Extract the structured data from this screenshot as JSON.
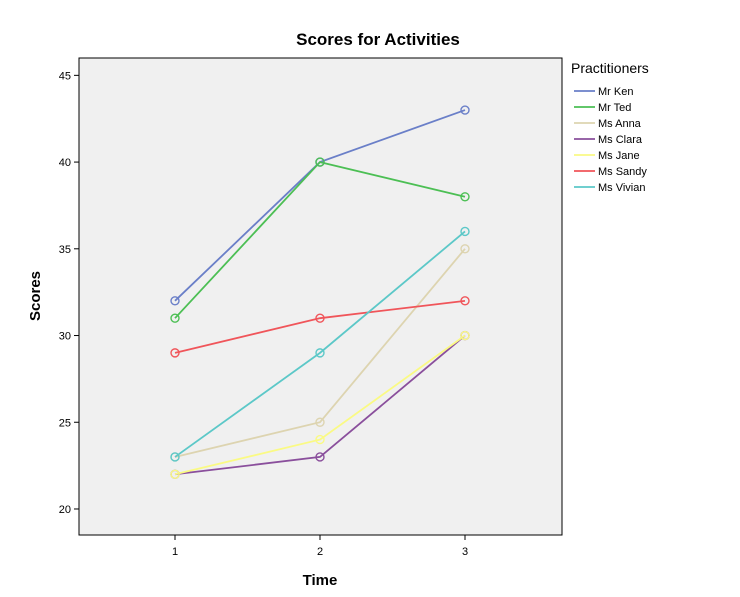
{
  "chart_data": {
    "type": "line",
    "title": "Scores for Activities",
    "xlabel": "Time",
    "ylabel": "Scores",
    "x": [
      "1",
      "2",
      "3"
    ],
    "ylim": [
      18.5,
      46
    ],
    "yticks": [
      20,
      25,
      30,
      35,
      40,
      45
    ],
    "legend_title": "Practitioners",
    "legend_position": "right",
    "marker": "circle",
    "background": "#f0f0f0",
    "series": [
      {
        "name": "Mr Ken",
        "color": "#6a7fc8",
        "values": [
          32,
          40,
          43
        ]
      },
      {
        "name": "Mr Ted",
        "color": "#4cbf54",
        "values": [
          31,
          40,
          38
        ]
      },
      {
        "name": "Ms Anna",
        "color": "#ddd4b0",
        "values": [
          23,
          25,
          35
        ]
      },
      {
        "name": "Ms Clara",
        "color": "#8a4f9c",
        "values": [
          22,
          23,
          30
        ]
      },
      {
        "name": "Ms Jane",
        "color": "#fafa84",
        "values": [
          22,
          24,
          30
        ]
      },
      {
        "name": "Ms Sandy",
        "color": "#f0555a",
        "values": [
          29,
          31,
          32
        ]
      },
      {
        "name": "Ms Vivian",
        "color": "#5cc8c8",
        "values": [
          23,
          29,
          36
        ]
      }
    ]
  }
}
